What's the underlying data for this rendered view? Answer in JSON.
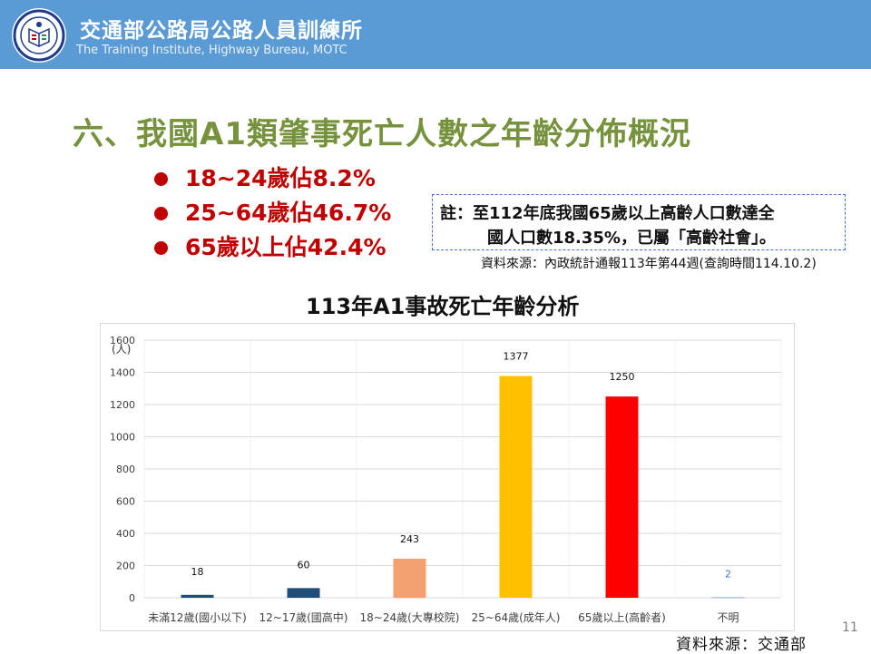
{
  "header": {
    "org_name_cn": "交通部公路局公路人員訓練所",
    "org_name_en": "The Training Institute, Highway Bureau, MOTC"
  },
  "slide": {
    "title": "六、我國A1類肇事死亡人數之年齡分佈概況",
    "bullets": [
      "18~24歲佔8.2%",
      "25~64歲佔46.7%",
      "65歲以上佔42.4%"
    ],
    "note_line1": "註：至112年底我國65歲以上高齡人口數達全",
    "note_line2": "國人口數18.35%，已屬「高齡社會」。",
    "note_source": "資料來源：內政統計通報113年第44週(查詢時間114.10.2)",
    "bottom_source": "資料來源：交通部",
    "page_number": "11"
  },
  "colors": {
    "header_bg": "#5b9bd5",
    "title": "#76923c",
    "bullet": "#c00000"
  },
  "chart_data": {
    "type": "bar",
    "title": "113年A1事故死亡年齡分析",
    "ylabel": "(人)",
    "xlabel": "",
    "ylim": [
      0,
      1600
    ],
    "yticks": [
      0,
      200,
      400,
      600,
      800,
      1000,
      1200,
      1400,
      1600
    ],
    "grid": true,
    "categories": [
      "未滿12歲(國小以下)",
      "12~17歲(國高中)",
      "18~24歲(大專校院)",
      "25~64歲(成年人)",
      "65歲以上(高齡者)",
      "不明"
    ],
    "values": [
      18,
      60,
      243,
      1377,
      1250,
      2
    ],
    "bar_colors": [
      "#1f4e79",
      "#1f4e79",
      "#f4a070",
      "#ffc000",
      "#ff0000",
      "#4472c4"
    ],
    "data_labels": [
      "18",
      "60",
      "243",
      "1377",
      "1250",
      "2"
    ]
  }
}
